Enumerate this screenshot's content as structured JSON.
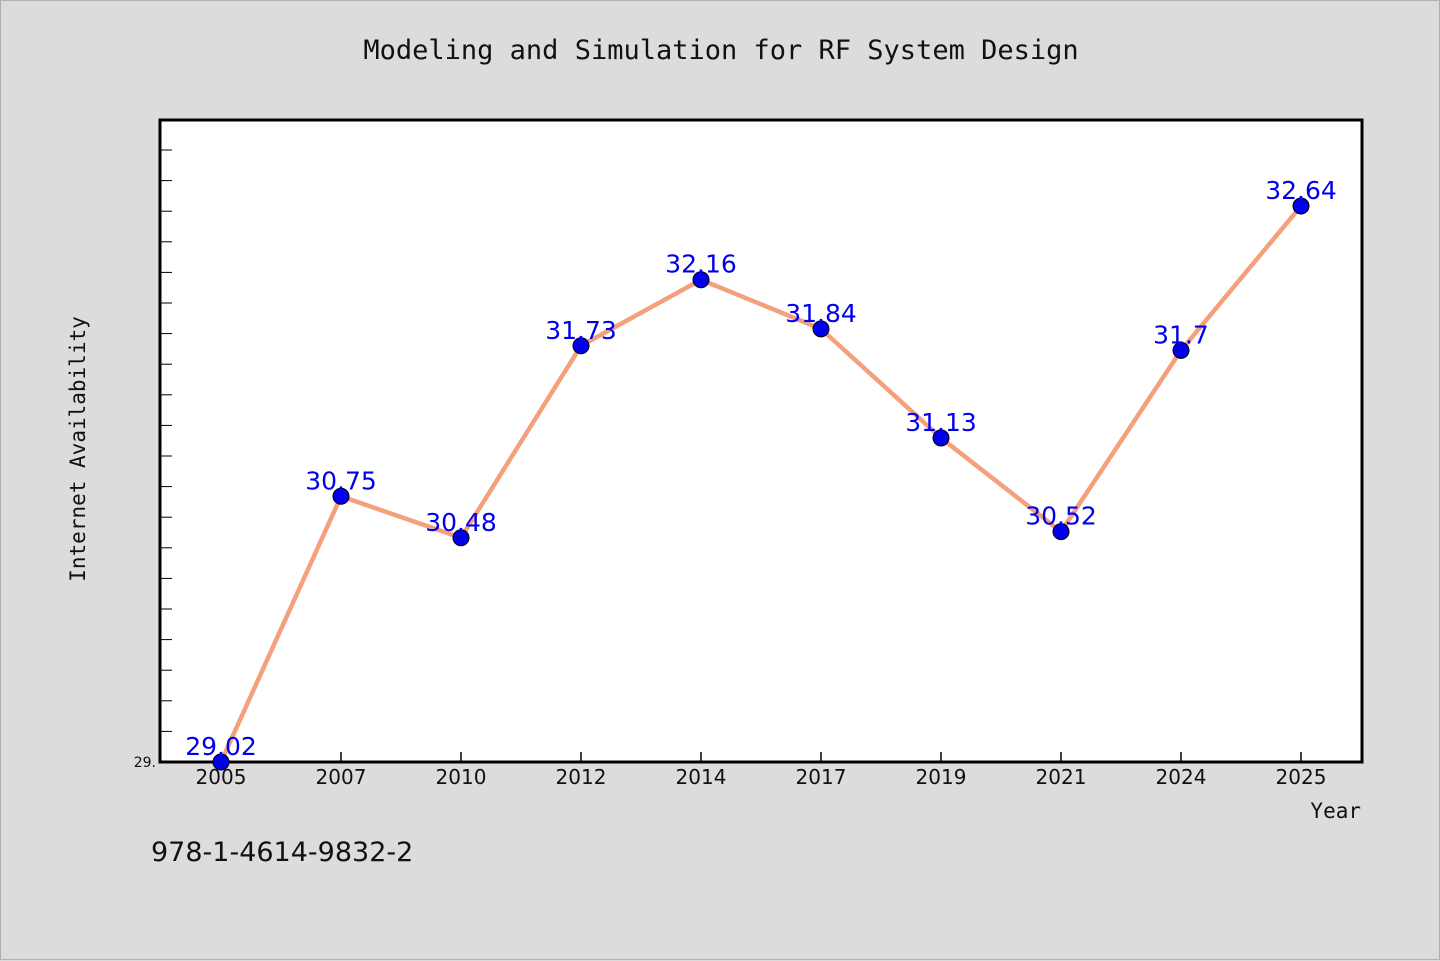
{
  "chart_data": {
    "type": "line",
    "title": "Modeling and Simulation for RF System Design",
    "xlabel": "Year",
    "ylabel": "Internet Availability",
    "categories": [
      "2005",
      "2007",
      "2010",
      "2012",
      "2014",
      "2017",
      "2019",
      "2021",
      "2024",
      "2025"
    ],
    "series": [
      {
        "values": [
          29.02,
          30.75,
          30.48,
          31.73,
          32.16,
          31.84,
          31.13,
          30.52,
          31.7,
          32.64
        ],
        "labels": [
          "29.02",
          "30.75",
          "30.48",
          "31.73",
          "32.16",
          "31.84",
          "31.13",
          "30.52",
          "31.7",
          "32.64"
        ]
      }
    ],
    "ylim": [
      29.02,
      33.2
    ],
    "y_tick_labels": [
      "29."
    ],
    "grid": false,
    "line_color": "#f4a07c",
    "marker_color": "#0000ee",
    "label_color": "#0000ee"
  },
  "footer": {
    "isbn": "978-1-4614-9832-2"
  }
}
